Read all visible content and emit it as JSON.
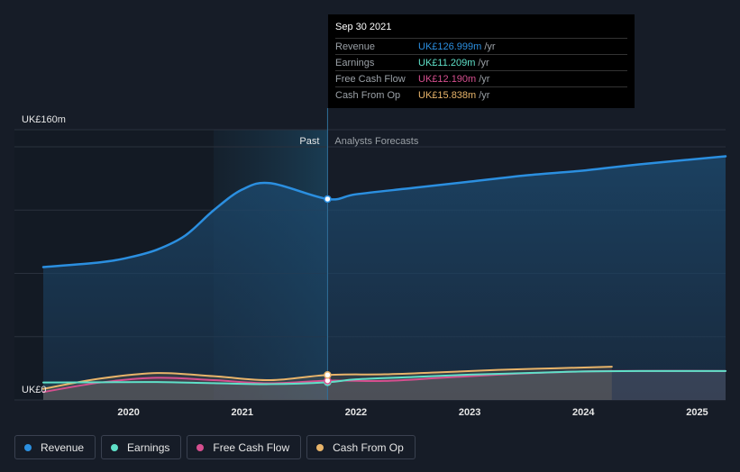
{
  "chart_data": {
    "type": "line",
    "x_domain": [
      2019.25,
      2025.25
    ],
    "ylim": [
      0,
      160
    ],
    "y_unit": "UK£",
    "y_tick_labels": [
      "UK£160m",
      "UK£0"
    ],
    "x_tick_labels": [
      "2020",
      "2021",
      "2022",
      "2023",
      "2024",
      "2025"
    ],
    "x_ticks": [
      2020,
      2021,
      2022,
      2023,
      2024,
      2025
    ],
    "divider_x": 2021.75,
    "divider_labels": {
      "past": "Past",
      "forecast": "Analysts Forecasts"
    },
    "series": [
      {
        "name": "Revenue",
        "color": "#2b8fe0",
        "points": [
          [
            2019.25,
            84
          ],
          [
            2019.75,
            87
          ],
          [
            2020.0,
            90
          ],
          [
            2020.25,
            95
          ],
          [
            2020.5,
            104
          ],
          [
            2020.75,
            120
          ],
          [
            2021.0,
            133
          ],
          [
            2021.25,
            137
          ],
          [
            2021.75,
            127
          ],
          [
            2022.0,
            130
          ],
          [
            2022.5,
            134
          ],
          [
            2023.0,
            138
          ],
          [
            2023.5,
            142
          ],
          [
            2024.0,
            145
          ],
          [
            2024.5,
            149
          ],
          [
            2025.25,
            154
          ]
        ]
      },
      {
        "name": "Earnings",
        "color": "#5fe0c8",
        "points": [
          [
            2019.25,
            11
          ],
          [
            2019.75,
            11.2
          ],
          [
            2020.25,
            11.3
          ],
          [
            2020.75,
            10.6
          ],
          [
            2021.25,
            10
          ],
          [
            2021.75,
            11.2
          ],
          [
            2022.0,
            13
          ],
          [
            2022.5,
            14.5
          ],
          [
            2023.0,
            16
          ],
          [
            2023.5,
            17
          ],
          [
            2024.0,
            18
          ],
          [
            2024.5,
            18.3
          ],
          [
            2025.25,
            18.3
          ]
        ]
      },
      {
        "name": "Free Cash Flow",
        "color": "#d64f8f",
        "points": [
          [
            2019.25,
            5
          ],
          [
            2019.75,
            11
          ],
          [
            2020.25,
            14
          ],
          [
            2020.75,
            12.5
          ],
          [
            2021.25,
            10.5
          ],
          [
            2021.75,
            12.2
          ],
          [
            2022.25,
            12
          ],
          [
            2022.75,
            14
          ],
          [
            2023.25,
            16
          ],
          [
            2023.75,
            17.5
          ],
          [
            2024.25,
            18.3
          ],
          [
            2025.25,
            18.3
          ]
        ]
      },
      {
        "name": "Cash From Op",
        "color": "#e8b46a",
        "points": [
          [
            2019.25,
            7
          ],
          [
            2019.75,
            13.5
          ],
          [
            2020.25,
            17
          ],
          [
            2020.75,
            15
          ],
          [
            2021.25,
            12.5
          ],
          [
            2021.75,
            15.8
          ],
          [
            2022.25,
            16.2
          ],
          [
            2022.75,
            17.5
          ],
          [
            2023.25,
            19
          ],
          [
            2023.75,
            20
          ],
          [
            2024.25,
            21
          ]
        ]
      }
    ]
  },
  "tooltip": {
    "title": "Sep 30 2021",
    "rows": [
      {
        "label": "Revenue",
        "value": "UK£126.999m",
        "unit": "/yr",
        "color": "#2b8fe0"
      },
      {
        "label": "Earnings",
        "value": "UK£11.209m",
        "unit": "/yr",
        "color": "#5fe0c8"
      },
      {
        "label": "Free Cash Flow",
        "value": "UK£12.190m",
        "unit": "/yr",
        "color": "#d64f8f"
      },
      {
        "label": "Cash From Op",
        "value": "UK£15.838m",
        "unit": "/yr",
        "color": "#e8b46a"
      }
    ]
  },
  "legend": [
    {
      "label": "Revenue",
      "color": "#2b8fe0"
    },
    {
      "label": "Earnings",
      "color": "#5fe0c8"
    },
    {
      "label": "Free Cash Flow",
      "color": "#d64f8f"
    },
    {
      "label": "Cash From Op",
      "color": "#e8b46a"
    }
  ]
}
